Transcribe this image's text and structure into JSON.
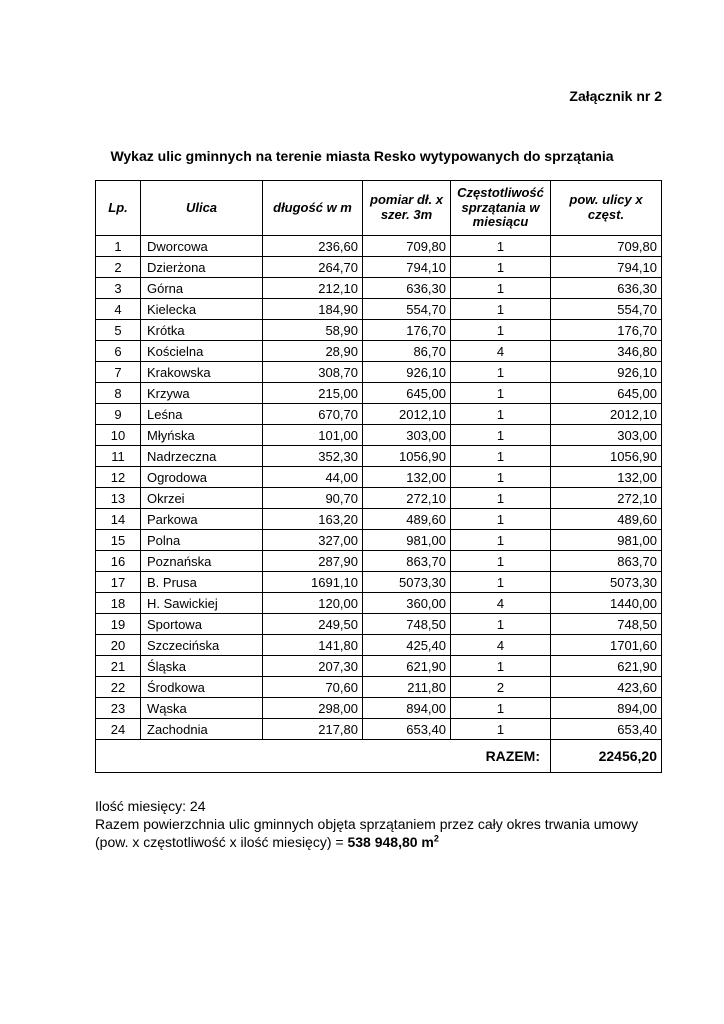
{
  "page": {
    "attachment_label": "Załącznik nr 2",
    "title": "Wykaz ulic gminnych na terenie miasta Resko wytypowanych do sprzątania"
  },
  "table": {
    "headers": {
      "lp": "Lp.",
      "street": "Ulica",
      "length": "długość w m",
      "measure": "pomiar dł. x szer. 3m",
      "frequency": "Częstotliwość sprzątania w miesiącu",
      "area": "pow. ulicy x częst."
    },
    "rows": [
      [
        "1",
        "Dworcowa",
        "236,60",
        "709,80",
        "1",
        "709,80"
      ],
      [
        "2",
        "Dzierżona",
        "264,70",
        "794,10",
        "1",
        "794,10"
      ],
      [
        "3",
        "Górna",
        "212,10",
        "636,30",
        "1",
        "636,30"
      ],
      [
        "4",
        "Kielecka",
        "184,90",
        "554,70",
        "1",
        "554,70"
      ],
      [
        "5",
        "Krótka",
        "58,90",
        "176,70",
        "1",
        "176,70"
      ],
      [
        "6",
        "Kościelna",
        "28,90",
        "86,70",
        "4",
        "346,80"
      ],
      [
        "7",
        "Krakowska",
        "308,70",
        "926,10",
        "1",
        "926,10"
      ],
      [
        "8",
        "Krzywa",
        "215,00",
        "645,00",
        "1",
        "645,00"
      ],
      [
        "9",
        "Leśna",
        "670,70",
        "2012,10",
        "1",
        "2012,10"
      ],
      [
        "10",
        "Młyńska",
        "101,00",
        "303,00",
        "1",
        "303,00"
      ],
      [
        "11",
        "Nadrzeczna",
        "352,30",
        "1056,90",
        "1",
        "1056,90"
      ],
      [
        "12",
        "Ogrodowa",
        "44,00",
        "132,00",
        "1",
        "132,00"
      ],
      [
        "13",
        "Okrzei",
        "90,70",
        "272,10",
        "1",
        "272,10"
      ],
      [
        "14",
        "Parkowa",
        "163,20",
        "489,60",
        "1",
        "489,60"
      ],
      [
        "15",
        "Polna",
        "327,00",
        "981,00",
        "1",
        "981,00"
      ],
      [
        "16",
        "Poznańska",
        "287,90",
        "863,70",
        "1",
        "863,70"
      ],
      [
        "17",
        "B. Prusa",
        "1691,10",
        "5073,30",
        "1",
        "5073,30"
      ],
      [
        "18",
        "H. Sawickiej",
        "120,00",
        "360,00",
        "4",
        "1440,00"
      ],
      [
        "19",
        "Sportowa",
        "249,50",
        "748,50",
        "1",
        "748,50"
      ],
      [
        "20",
        "Szczecińska",
        "141,80",
        "425,40",
        "4",
        "1701,60"
      ],
      [
        "21",
        "Śląska",
        "207,30",
        "621,90",
        "1",
        "621,90"
      ],
      [
        "22",
        "Środkowa",
        "70,60",
        "211,80",
        "2",
        "423,60"
      ],
      [
        "23",
        "Wąska",
        "298,00",
        "894,00",
        "1",
        "894,00"
      ],
      [
        "24",
        "Zachodnia",
        "217,80",
        "653,40",
        "1",
        "653,40"
      ]
    ],
    "total_label": "RAZEM:",
    "total_value": "22456,20"
  },
  "footer": {
    "line1": "Ilość miesięcy: 24",
    "line2": "Razem powierzchnia ulic gminnych objęta sprzątaniem przez cały okres trwania umowy",
    "line3_prefix": "(pow. x częstotliwość x ilość miesięcy) = ",
    "line3_bold": "538 948,80 m",
    "line3_sup": "2"
  }
}
